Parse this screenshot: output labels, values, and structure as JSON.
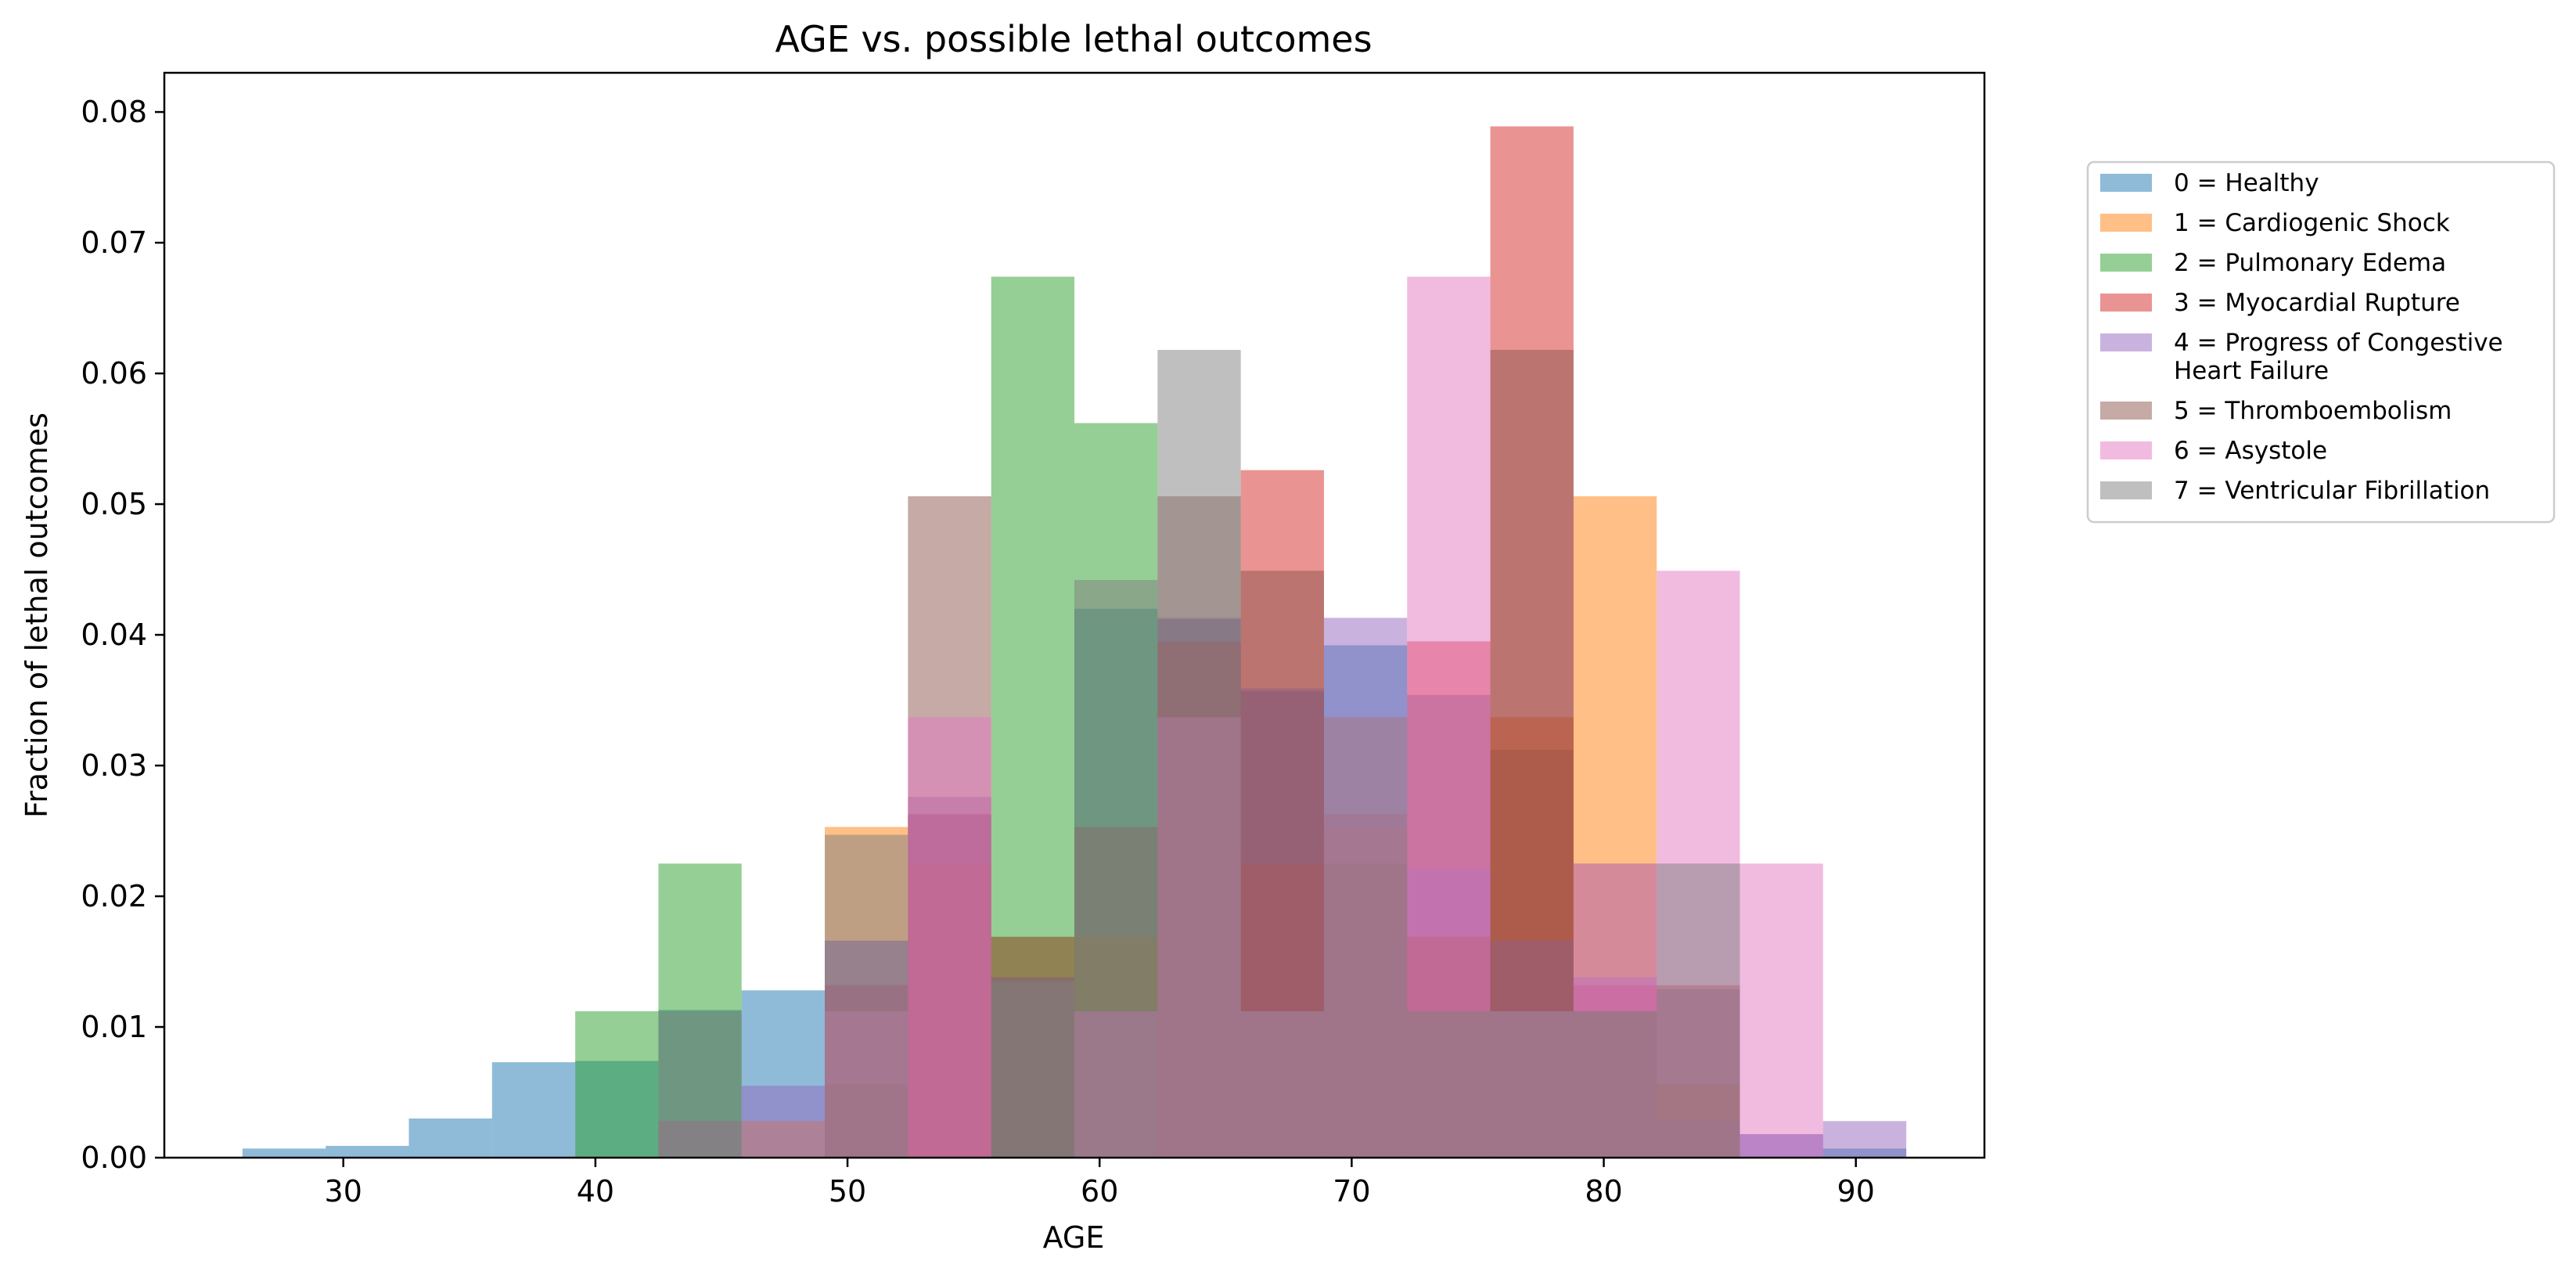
{
  "chart_data": {
    "type": "histogram",
    "title": "AGE vs. possible lethal outcomes",
    "xlabel": "AGE",
    "ylabel": "Fraction of lethal outcomes",
    "xlim": [
      22.9,
      95.1
    ],
    "ylim": [
      0,
      0.083
    ],
    "xticks": [
      "30",
      "40",
      "50",
      "60",
      "70",
      "80",
      "90"
    ],
    "yticks": [
      "0.00",
      "0.01",
      "0.02",
      "0.03",
      "0.04",
      "0.05",
      "0.06",
      "0.07",
      "0.08"
    ],
    "bin_edges": [
      26.0,
      29.3,
      32.6,
      35.9,
      39.2,
      42.5,
      45.8,
      49.1,
      52.4,
      55.7,
      59.0,
      62.3,
      65.6,
      68.9,
      72.2,
      75.5,
      78.8,
      82.1,
      85.4,
      88.7,
      92.0
    ],
    "bar_opacity": 0.5,
    "legend_position": "right, outside plot",
    "grid": false,
    "series": [
      {
        "name": "0 = Healthy",
        "color": "#1f77b4",
        "values": [
          0.0007,
          0.0009,
          0.003,
          0.0073,
          0.0074,
          0.0113,
          0.0128,
          0.0166,
          0.0262,
          0.0138,
          0.042,
          0.0412,
          0.0357,
          0.0392,
          0.0354,
          0.0312,
          0.0225,
          0.0129,
          0.0018,
          0.0007
        ]
      },
      {
        "name": "1 = Cardiogenic Shock",
        "color": "#ff7f0e",
        "values": [
          0,
          0,
          0,
          0,
          0,
          0.0028,
          0.0028,
          0.0253,
          0.0225,
          0.0169,
          0.0169,
          0.0393,
          0.0225,
          0.0253,
          0.0169,
          0.0337,
          0.0506,
          0.0056,
          0,
          0
        ]
      },
      {
        "name": "2 = Pulmonary Edema",
        "color": "#2ca02c",
        "values": [
          0,
          0,
          0,
          0,
          0.0112,
          0.0225,
          0,
          0,
          0,
          0.0674,
          0.0562,
          0,
          0,
          0,
          0,
          0,
          0,
          0,
          0,
          0
        ]
      },
      {
        "name": "3 = Myocardial Rupture",
        "color": "#d62728",
        "values": [
          0,
          0,
          0,
          0,
          0,
          0,
          0,
          0.0132,
          0.0263,
          0,
          0,
          0.0395,
          0.0526,
          0.0263,
          0.0395,
          0.0789,
          0.0132,
          0.0132,
          0,
          0
        ]
      },
      {
        "name": "4 = Progress of Congestive\nHeart Failure",
        "color": "#9467bd",
        "values": [
          0,
          0,
          0,
          0,
          0,
          0.0028,
          0.0055,
          0.0166,
          0.0276,
          0.0138,
          0.0112,
          0.0413,
          0.0359,
          0.0413,
          0.0221,
          0.0166,
          0.0138,
          0.0028,
          0.0018,
          0.0028
        ]
      },
      {
        "name": "5 = Thromboembolism",
        "color": "#8c564b",
        "values": [
          0,
          0,
          0,
          0,
          0,
          0,
          0,
          0.0056,
          0.0506,
          0.0169,
          0.0253,
          0.0506,
          0.0449,
          0.0225,
          0.0169,
          0.0618,
          0.0112,
          0.0056,
          0,
          0
        ]
      },
      {
        "name": "6 = Asystole",
        "color": "#e377c2",
        "values": [
          0,
          0,
          0,
          0,
          0,
          0,
          0,
          0.0112,
          0.0337,
          0,
          0.0112,
          0.0337,
          0.0112,
          0.0337,
          0.0674,
          0.0112,
          0.0225,
          0.0449,
          0.0225,
          0
        ]
      },
      {
        "name": "7 = Ventricular Fibrillation",
        "color": "#7f7f7f",
        "values": [
          0,
          0,
          0,
          0,
          0,
          0.0112,
          0,
          0.0247,
          0,
          0.0135,
          0.0442,
          0.0618,
          0.0112,
          0.0337,
          0.0112,
          0.0112,
          0.0112,
          0.0225,
          0,
          0
        ]
      }
    ]
  }
}
